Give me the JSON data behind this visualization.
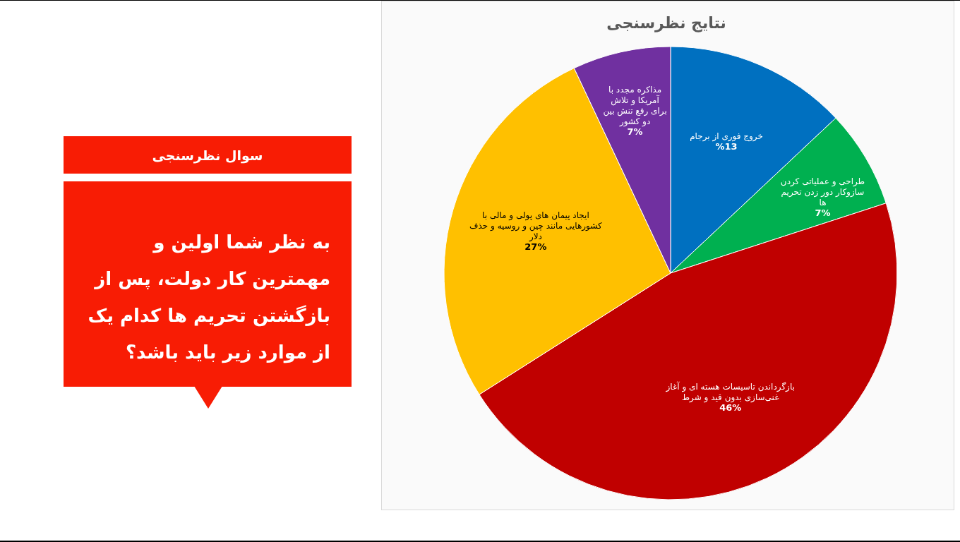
{
  "chart_data": [
    {
      "type": "other",
      "title": "سوال نظرسنجی",
      "annotations": [
        "به نظر شما اولین و مهمترین کار دولت، پس از بازگشتن تحریم ها کدام یک از موارد زیر باید باشد؟"
      ]
    },
    {
      "type": "pie",
      "title": "نتایج نظرسنجی",
      "categories": [
        "خروج فوری از برجام",
        "طراحی و عملیاتی کردن سازوکار دور زدن تحریم ها",
        "بازگرداندن تاسیسات هسته ای و آغاز غنی‌سازی بدون قید و شرط",
        "ایجاد پیمان های پولی و مالی با کشورهایی مانند چین و روسیه و حذف دلار",
        "مذاکره مجدد با آمریکا و تلاش برای رفع تنش بین دو کشور"
      ],
      "values": [
        13,
        7,
        46,
        27,
        7
      ],
      "colors": [
        "#0070c0",
        "#00b050",
        "#c00000",
        "#ffc000",
        "#7030a0"
      ],
      "value_labels": [
        "%13",
        "7%",
        "46%",
        "27%",
        "7%"
      ]
    }
  ]
}
